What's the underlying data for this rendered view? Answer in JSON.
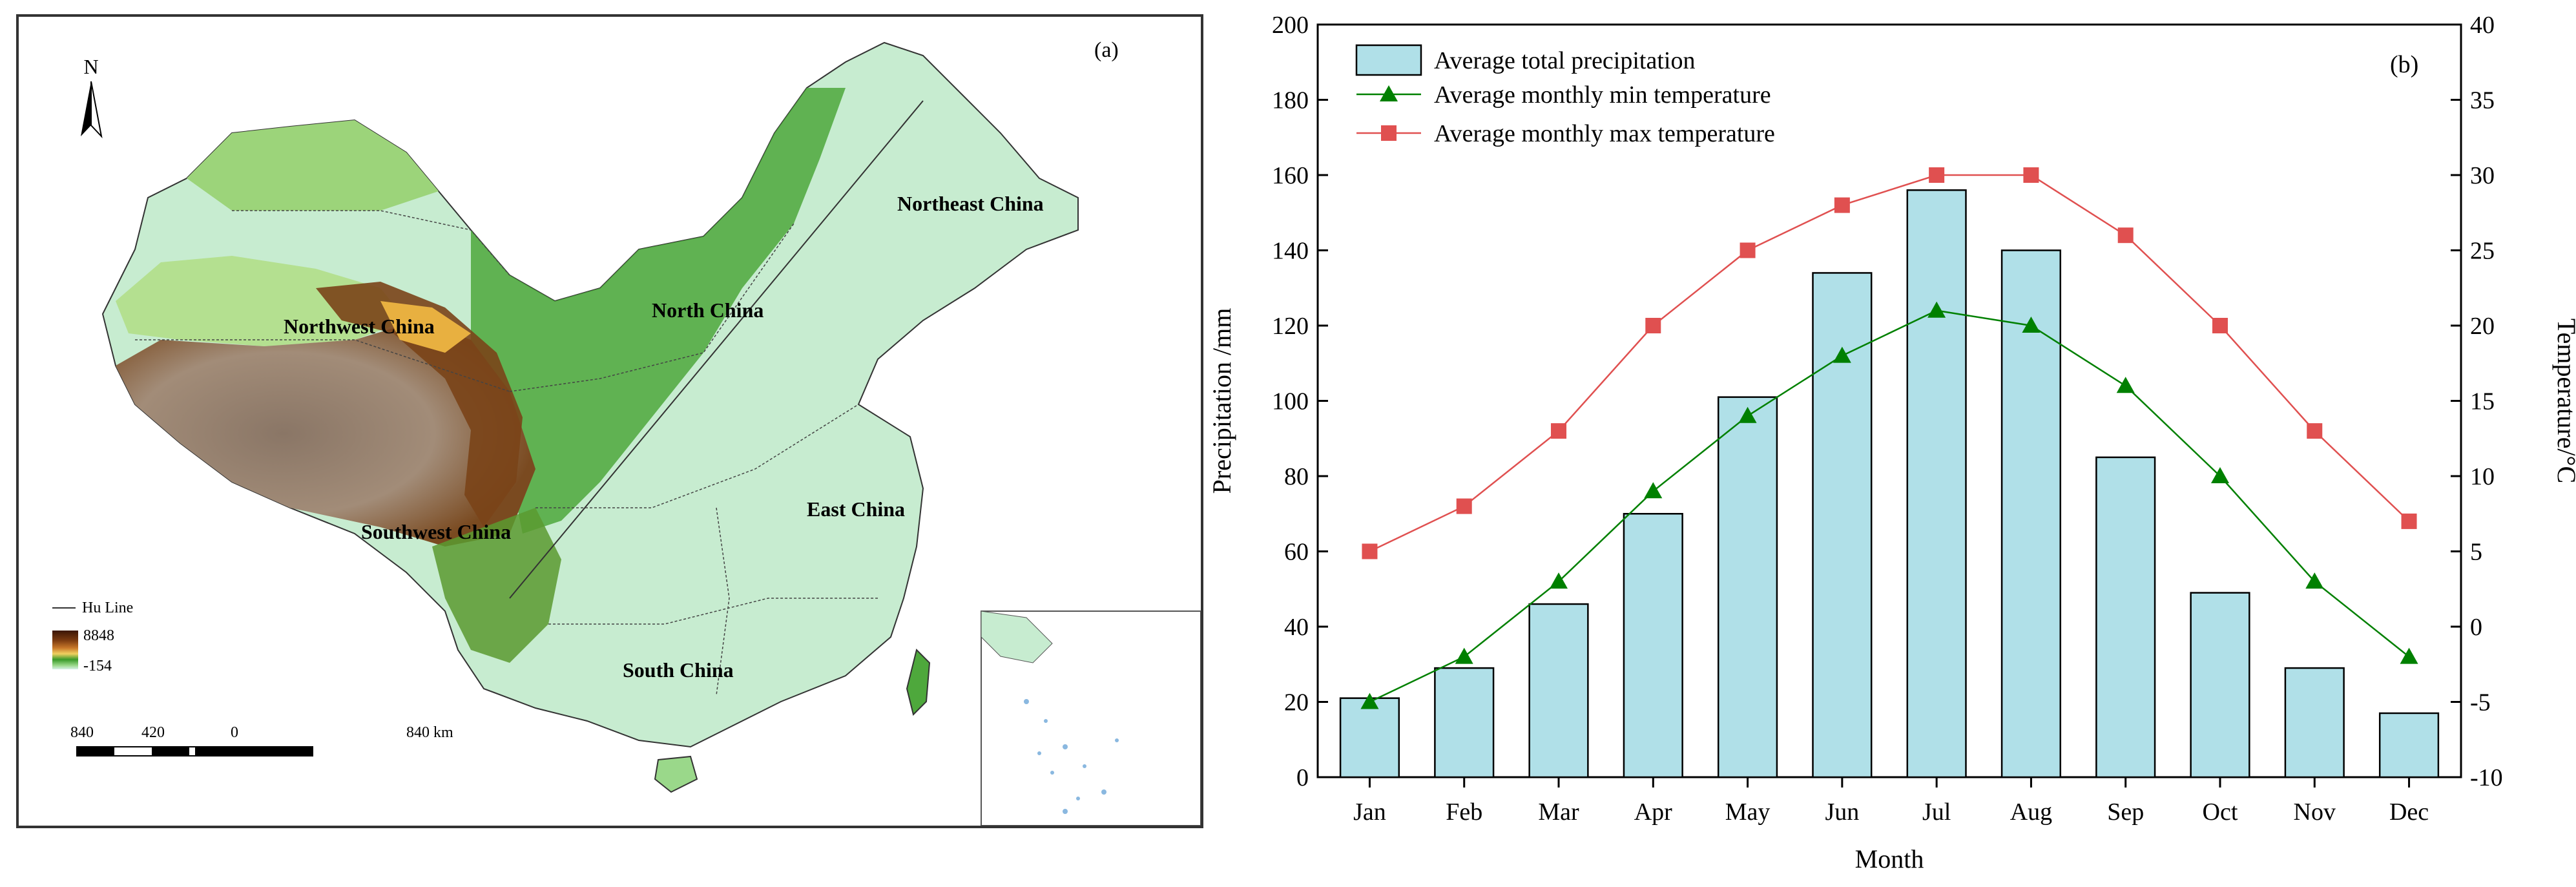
{
  "map": {
    "panel_label": "(a)",
    "north_label": "N",
    "regions": [
      {
        "name": "Northwest China"
      },
      {
        "name": "North China"
      },
      {
        "name": "Northeast China"
      },
      {
        "name": "Southwest China"
      },
      {
        "name": "East China"
      },
      {
        "name": "South China"
      }
    ],
    "legend": {
      "hu_line": "Hu Line",
      "elev_max": "8848",
      "elev_min": "-154",
      "ramp_colors": [
        "#3a1505",
        "#7a3a10",
        "#c8782a",
        "#f0d060",
        "#3a9a2a",
        "#9ad88a",
        "#d8f0e8"
      ]
    },
    "scale": {
      "ticks": [
        "840",
        "420",
        "0",
        "840 km"
      ]
    },
    "colors": {
      "lowland": "#c7ecd0",
      "hills": "#4ea83c",
      "highland": "#7a4418",
      "plateau": "#9b8a78",
      "desert_basin": "#b4e090",
      "sea": "#ffffff",
      "border": "#333333"
    }
  },
  "chart_data": {
    "type": "bar+line",
    "panel_label": "(b)",
    "categories": [
      "Jan",
      "Feb",
      "Mar",
      "Apr",
      "May",
      "Jun",
      "Jul",
      "Aug",
      "Sep",
      "Oct",
      "Nov",
      "Dec"
    ],
    "bar_series": {
      "name": "Average total precipitation",
      "axis": "left",
      "color": "#b0e0e8",
      "values": [
        21,
        29,
        46,
        70,
        101,
        134,
        156,
        140,
        85,
        49,
        29,
        17
      ]
    },
    "line_series": [
      {
        "name": "Average monthly min temperature",
        "axis": "right",
        "color": "#008000",
        "marker": "triangle",
        "values": [
          -5,
          -2,
          3,
          9,
          14,
          18,
          21,
          20,
          16,
          10,
          3,
          -2
        ]
      },
      {
        "name": "Average monthly max temperature",
        "axis": "right",
        "color": "#e05050",
        "marker": "square",
        "values": [
          5,
          8,
          13,
          20,
          25,
          28,
          30,
          30,
          26,
          20,
          13,
          7
        ]
      }
    ],
    "xlabel": "Month",
    "ylabel_left": "Precipitation /mm",
    "ylabel_right": "Temperature/°C",
    "ylim_left": [
      0,
      200
    ],
    "ylim_right": [
      -10,
      40
    ],
    "yticks_left": [
      0,
      20,
      40,
      60,
      80,
      100,
      120,
      140,
      160,
      180,
      200
    ],
    "yticks_right": [
      -10,
      -5,
      0,
      5,
      10,
      15,
      20,
      25,
      30,
      35,
      40
    ],
    "legend_position": "top-left",
    "grid": false
  }
}
